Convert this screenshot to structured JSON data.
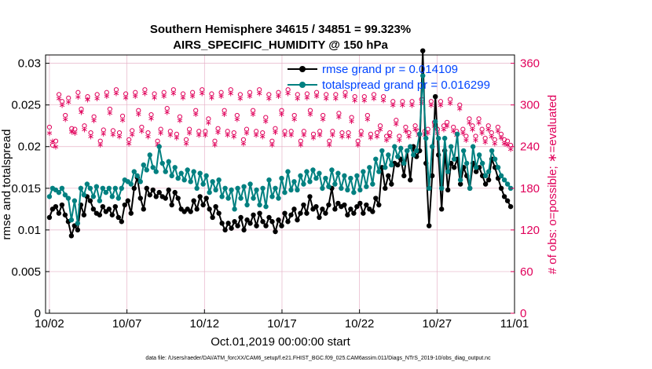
{
  "chart_data": {
    "type": "line",
    "title": "Southern Hemisphere 34615 / 34851 = 99.323%",
    "subtitle": "AIRS_SPECIFIC_HUMIDITY @ 150 hPa",
    "xlabel": "Oct.01,2019 00:00:00 start",
    "ylabel_left": "rmse and totalspread",
    "ylabel_right": "# of obs: o=possible; ∗=evaluated",
    "footer": "data file: /Users/raeder/DAI/ATM_forcXX/CAM6_setup/f.e21.FHIST_BGC.f09_025.CAM6assim.011/Diags_NTrS_2019-10/obs_diag_output.nc",
    "x_tick_labels": [
      "10/02",
      "10/07",
      "10/12",
      "10/17",
      "10/22",
      "10/27",
      "11/01"
    ],
    "x_tick_days": [
      1,
      6,
      11,
      16,
      21,
      26,
      31
    ],
    "xlim": [
      0.75,
      31.0
    ],
    "ylim_left": [
      0,
      0.031
    ],
    "y_left_ticks": [
      "0",
      "0.005",
      "0.01",
      "0.015",
      "0.02",
      "0.025",
      "0.03"
    ],
    "ylim_right": [
      0,
      372
    ],
    "y_right_ticks": [
      "0",
      "60",
      "120",
      "180",
      "240",
      "300",
      "360"
    ],
    "legend_placement": "top-right",
    "grid": true,
    "colors": {
      "rmse": "#000000",
      "spread": "#008080",
      "obs": "#e0005a",
      "right_axis": "#e0005a",
      "legend_text": "#0044ff"
    },
    "series": [
      {
        "name": "rmse grand pr = 0.014109",
        "color": "#000000",
        "values": [
          0.0115,
          0.0125,
          0.0128,
          0.012,
          0.013,
          0.0118,
          0.011,
          0.0093,
          0.0105,
          0.01,
          0.013,
          0.0118,
          0.014,
          0.0135,
          0.0125,
          0.012,
          0.0118,
          0.0128,
          0.0122,
          0.0125,
          0.0118,
          0.0128,
          0.0115,
          0.011,
          0.013,
          0.0135,
          0.012,
          0.015,
          0.0163,
          0.0138,
          0.0125,
          0.015,
          0.0142,
          0.0148,
          0.014,
          0.0145,
          0.014,
          0.0138,
          0.0148,
          0.013,
          0.0145,
          0.0138,
          0.0125,
          0.0122,
          0.0125,
          0.0122,
          0.0135,
          0.0125,
          0.014,
          0.013,
          0.0138,
          0.0125,
          0.0115,
          0.0128,
          0.012,
          0.0108,
          0.01,
          0.0108,
          0.0102,
          0.011,
          0.0105,
          0.0115,
          0.01,
          0.0112,
          0.0108,
          0.0118,
          0.0105,
          0.012,
          0.011,
          0.0105,
          0.0115,
          0.011,
          0.0098,
          0.0112,
          0.0105,
          0.012,
          0.011,
          0.0118,
          0.0125,
          0.0112,
          0.012,
          0.013,
          0.012,
          0.014,
          0.0125,
          0.0128,
          0.0115,
          0.0125,
          0.012,
          0.013,
          0.015,
          0.0125,
          0.0132,
          0.0128,
          0.013,
          0.0118,
          0.0125,
          0.012,
          0.0128,
          0.0132,
          0.012,
          0.013,
          0.0125,
          0.0122,
          0.0138,
          0.013,
          0.0175,
          0.015,
          0.0165,
          0.0155,
          0.018,
          0.0178,
          0.0185,
          0.0165,
          0.0195,
          0.016,
          0.02,
          0.0188,
          0.0195,
          0.0315,
          0.018,
          0.0105,
          0.0165,
          0.026,
          0.019,
          0.0125,
          0.0195,
          0.0148,
          0.018,
          0.0175,
          0.0185,
          0.0155,
          0.0175,
          0.0165,
          0.015,
          0.018,
          0.017,
          0.0175,
          0.0165,
          0.0155,
          0.016,
          0.0185,
          0.0175,
          0.0162,
          0.015,
          0.014,
          0.0135,
          0.0128
        ]
      },
      {
        "name": "totalspread grand pr = 0.016299",
        "color": "#008080",
        "values": [
          0.014,
          0.015,
          0.0148,
          0.0145,
          0.015,
          0.0142,
          0.0138,
          0.0112,
          0.0135,
          0.0108,
          0.015,
          0.0142,
          0.0155,
          0.015,
          0.014,
          0.0152,
          0.0135,
          0.015,
          0.0145,
          0.015,
          0.014,
          0.015,
          0.0138,
          0.015,
          0.016,
          0.0158,
          0.0155,
          0.017,
          0.0165,
          0.0158,
          0.0178,
          0.0172,
          0.019,
          0.0175,
          0.017,
          0.02,
          0.018,
          0.017,
          0.0182,
          0.0165,
          0.0175,
          0.0162,
          0.0168,
          0.016,
          0.0172,
          0.0158,
          0.017,
          0.015,
          0.0168,
          0.0155,
          0.0165,
          0.0145,
          0.0158,
          0.0148,
          0.016,
          0.014,
          0.015,
          0.0138,
          0.0148,
          0.0125,
          0.015,
          0.0138,
          0.0152,
          0.013,
          0.0155,
          0.0138,
          0.0148,
          0.013,
          0.015,
          0.0128,
          0.016,
          0.014,
          0.015,
          0.0138,
          0.0162,
          0.0145,
          0.017,
          0.0148,
          0.0158,
          0.0148,
          0.0165,
          0.0155,
          0.017,
          0.0158,
          0.0172,
          0.0162,
          0.0168,
          0.015,
          0.0162,
          0.0152,
          0.0172,
          0.0155,
          0.0168,
          0.015,
          0.0165,
          0.0148,
          0.0162,
          0.0145,
          0.0165,
          0.0148,
          0.017,
          0.0152,
          0.0175,
          0.0155,
          0.0185,
          0.017,
          0.0195,
          0.0175,
          0.019,
          0.0178,
          0.02,
          0.0188,
          0.0198,
          0.018,
          0.0195,
          0.02,
          0.019,
          0.0195,
          0.0215,
          0.0285,
          0.021,
          0.015,
          0.02,
          0.023,
          0.021,
          0.015,
          0.021,
          0.017,
          0.02,
          0.0185,
          0.0215,
          0.016,
          0.0195,
          0.018,
          0.015,
          0.02,
          0.0175,
          0.019,
          0.018,
          0.0165,
          0.017,
          0.0195,
          0.0185,
          0.0175,
          0.0165,
          0.016,
          0.0155,
          0.015
        ]
      }
    ],
    "obs_possible": [
      268,
      242,
      248,
      315,
      305,
      285,
      310,
      266,
      265,
      318,
      294,
      270,
      312,
      260,
      283,
      315,
      248,
      264,
      318,
      294,
      263,
      322,
      260,
      284,
      316,
      250,
      263,
      318,
      292,
      268,
      322,
      260,
      286,
      316,
      248,
      265,
      318,
      295,
      262,
      322,
      258,
      283,
      316,
      250,
      265,
      318,
      292,
      262,
      322,
      262,
      280,
      316,
      248,
      266,
      318,
      292,
      262,
      322,
      260,
      285,
      315,
      250,
      265,
      318,
      292,
      262,
      322,
      260,
      282,
      315,
      248,
      266,
      318,
      292,
      262,
      322,
      262,
      285,
      315,
      248,
      262,
      316,
      292,
      258,
      318,
      262,
      285,
      315,
      248,
      262,
      315,
      288,
      260,
      318,
      260,
      282,
      312,
      248,
      262,
      312,
      285,
      258,
      315,
      260,
      270,
      312,
      255,
      260,
      305,
      278,
      255,
      305,
      268,
      260,
      305,
      270,
      262,
      308,
      262,
      265,
      305,
      275,
      265,
      305,
      270,
      275,
      308,
      268,
      262,
      300,
      265,
      255,
      280,
      270,
      255,
      280,
      265,
      252,
      270,
      260,
      250,
      268,
      258,
      250,
      248,
      242
    ],
    "obs_evaluated": [
      260,
      248,
      240,
      310,
      300,
      280,
      305,
      262,
      260,
      312,
      290,
      265,
      308,
      255,
      278,
      310,
      243,
      259,
      313,
      289,
      258,
      317,
      255,
      279,
      311,
      245,
      258,
      313,
      287,
      263,
      317,
      255,
      281,
      311,
      243,
      260,
      313,
      290,
      257,
      317,
      253,
      278,
      311,
      245,
      260,
      313,
      287,
      257,
      317,
      257,
      275,
      311,
      243,
      261,
      313,
      287,
      257,
      317,
      255,
      280,
      310,
      245,
      260,
      313,
      287,
      257,
      317,
      255,
      277,
      310,
      243,
      261,
      313,
      287,
      257,
      317,
      257,
      280,
      310,
      243,
      257,
      311,
      287,
      253,
      313,
      257,
      280,
      310,
      243,
      257,
      310,
      283,
      255,
      313,
      255,
      277,
      307,
      243,
      257,
      307,
      280,
      253,
      310,
      255,
      265,
      307,
      250,
      255,
      300,
      273,
      250,
      300,
      263,
      255,
      300,
      265,
      257,
      303,
      257,
      260,
      300,
      270,
      260,
      300,
      265,
      270,
      303,
      263,
      257,
      295,
      260,
      250,
      275,
      265,
      250,
      275,
      260,
      247,
      265,
      255,
      245,
      263,
      253,
      245,
      243,
      237
    ]
  }
}
